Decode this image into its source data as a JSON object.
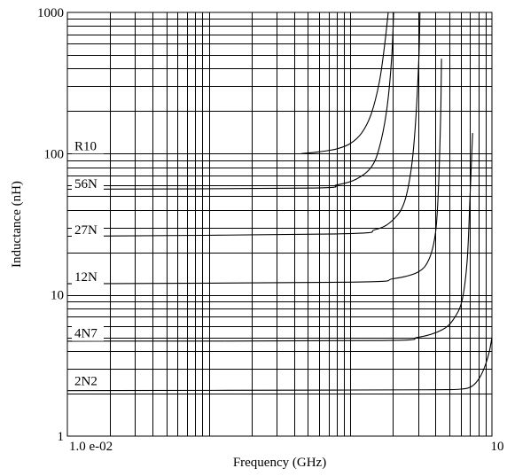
{
  "chart_data": {
    "type": "line",
    "title": "",
    "xlabel": "Frequency (GHz)",
    "ylabel": "Inductance (nH)",
    "xscale": "log",
    "yscale": "log",
    "xlim": [
      0.01,
      10
    ],
    "ylim": [
      1,
      1000
    ],
    "grid": true,
    "x_tick_labels": [
      {
        "value": 0.01,
        "label": "1.0 e-02"
      },
      {
        "value": 10,
        "label": "10"
      }
    ],
    "y_tick_labels": [
      {
        "value": 1,
        "label": "1"
      },
      {
        "value": 10,
        "label": "10"
      },
      {
        "value": 100,
        "label": "100"
      },
      {
        "value": 1000,
        "label": "1000"
      }
    ],
    "series": [
      {
        "name": "R10",
        "label_value": 106,
        "points": [
          [
            0.45,
            100
          ],
          [
            0.6,
            103
          ],
          [
            0.8,
            108
          ],
          [
            1.0,
            118
          ],
          [
            1.2,
            140
          ],
          [
            1.4,
            190
          ],
          [
            1.6,
            320
          ],
          [
            1.75,
            600
          ],
          [
            1.85,
            1000
          ]
        ]
      },
      {
        "name": "56N",
        "label_value": 57,
        "points": [
          [
            0.01,
            56
          ],
          [
            0.5,
            57
          ],
          [
            0.8,
            60
          ],
          [
            1.1,
            66
          ],
          [
            1.4,
            80
          ],
          [
            1.6,
            110
          ],
          [
            1.8,
            200
          ],
          [
            1.95,
            450
          ],
          [
            2.02,
            1000
          ]
        ]
      },
      {
        "name": "27N",
        "label_value": 27,
        "points": [
          [
            0.01,
            26
          ],
          [
            0.8,
            27
          ],
          [
            1.5,
            29
          ],
          [
            2.0,
            34
          ],
          [
            2.4,
            45
          ],
          [
            2.7,
            80
          ],
          [
            2.9,
            180
          ],
          [
            3.05,
            500
          ],
          [
            3.1,
            1000
          ]
        ]
      },
      {
        "name": "12N",
        "label_value": 12.5,
        "points": [
          [
            0.01,
            12
          ],
          [
            1.0,
            12.3
          ],
          [
            2.0,
            13
          ],
          [
            3.0,
            14.5
          ],
          [
            3.6,
            18
          ],
          [
            4.0,
            28
          ],
          [
            4.2,
            60
          ],
          [
            4.35,
            200
          ],
          [
            4.4,
            470
          ]
        ]
      },
      {
        "name": "4N7",
        "label_value": 5,
        "points": [
          [
            0.01,
            4.7
          ],
          [
            1.5,
            4.75
          ],
          [
            3.0,
            5.0
          ],
          [
            4.5,
            5.7
          ],
          [
            5.5,
            7.0
          ],
          [
            6.2,
            9.5
          ],
          [
            6.7,
            18
          ],
          [
            7.0,
            50
          ],
          [
            7.3,
            140
          ]
        ]
      },
      {
        "name": "2N2",
        "label_value": 2.3,
        "points": [
          [
            0.01,
            2.1
          ],
          [
            1.0,
            2.12
          ],
          [
            4.0,
            2.13
          ],
          [
            6.0,
            2.15
          ],
          [
            7.2,
            2.25
          ],
          [
            8.2,
            2.6
          ],
          [
            9.0,
            3.2
          ],
          [
            9.6,
            4.0
          ],
          [
            10,
            5.0
          ]
        ]
      }
    ]
  }
}
